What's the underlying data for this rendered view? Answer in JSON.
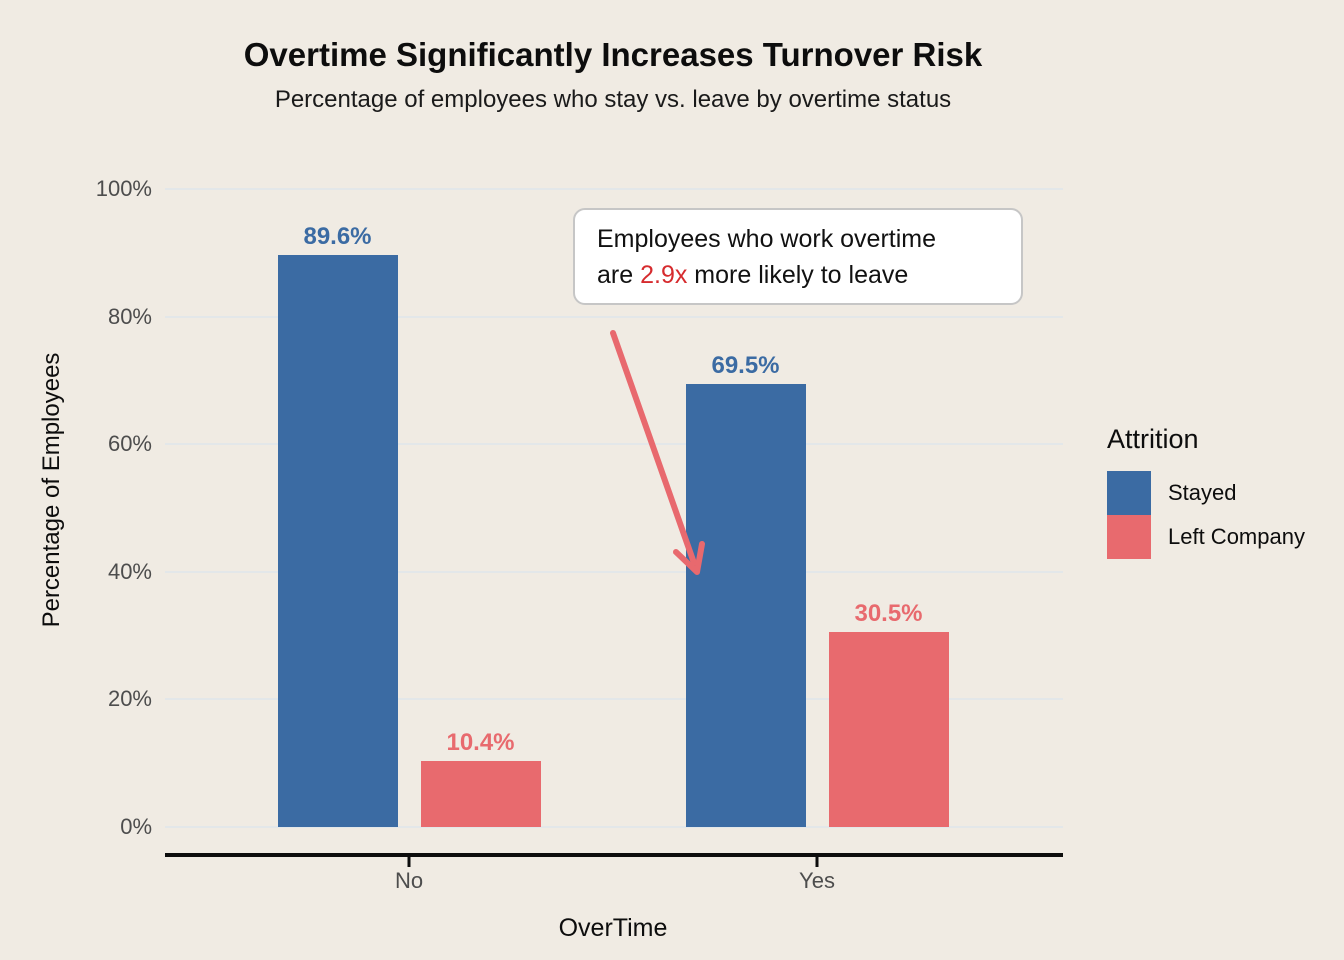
{
  "chart_data": {
    "type": "bar",
    "title": "Overtime Significantly Increases Turnover Risk",
    "subtitle": "Percentage of employees who stay vs. leave by overtime status",
    "xlabel": "OverTime",
    "ylabel": "Percentage of Employees",
    "categories": [
      "No",
      "Yes"
    ],
    "series": [
      {
        "name": "Stayed",
        "color": "#3b6ba3",
        "values": [
          89.6,
          69.5
        ],
        "labels": [
          "89.6%",
          "69.5%"
        ]
      },
      {
        "name": "Left Company",
        "color": "#e86a6e",
        "values": [
          10.4,
          30.5
        ],
        "labels": [
          "10.4%",
          "30.5%"
        ]
      }
    ],
    "ylim": [
      0,
      100
    ],
    "yticks": [
      {
        "value": 0,
        "label": "0%"
      },
      {
        "value": 20,
        "label": "20%"
      },
      {
        "value": 40,
        "label": "40%"
      },
      {
        "value": 60,
        "label": "60%"
      },
      {
        "value": 80,
        "label": "80%"
      },
      {
        "value": 100,
        "label": "100%"
      }
    ],
    "grid": "horizontal",
    "legend": {
      "title": "Attrition",
      "position": "right"
    },
    "annotation": {
      "line1": "Employees who work overtime",
      "line2_prefix": "are ",
      "highlight": "2.9x",
      "line2_suffix": " more likely to leave",
      "highlight_color": "#d62b2e",
      "arrow_color": "#e8696e"
    },
    "colors": {
      "background": "#f0ebe3",
      "grid": "#e3e7e9",
      "axis_text": "#4d4d4d",
      "axis_line": "#0d0d0d"
    }
  }
}
